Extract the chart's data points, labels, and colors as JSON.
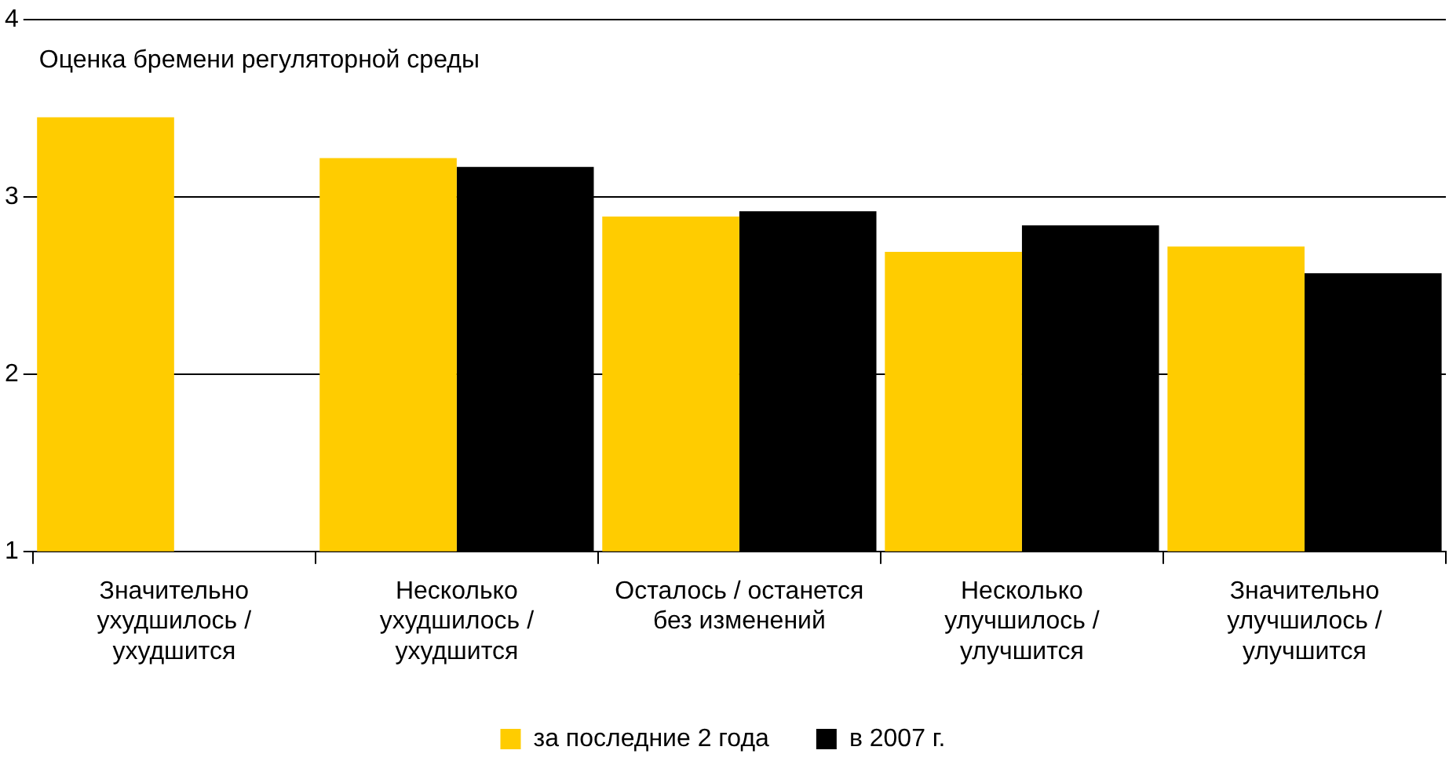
{
  "chart_data": {
    "type": "bar",
    "title": "Оценка бремени регуляторной среды",
    "categories": [
      "Значительно ухудшилось / ухудшится",
      "Несколько ухудшилось / ухудшится",
      "Осталось / останется без изменений",
      "Несколько улучшилось / улучшится",
      "Значительно улучшилось / улучшится"
    ],
    "series": [
      {
        "name": "за последние 2 года",
        "color": "#ffcc00",
        "values": [
          3.45,
          3.22,
          2.89,
          2.69,
          2.72
        ]
      },
      {
        "name": "в 2007 г.",
        "color": "#000000",
        "values": [
          null,
          3.17,
          2.92,
          2.84,
          2.57
        ]
      }
    ],
    "ylim": [
      1,
      4
    ],
    "yticks": [
      1,
      2,
      3,
      4
    ],
    "grid": "y",
    "legend": "bottom"
  }
}
